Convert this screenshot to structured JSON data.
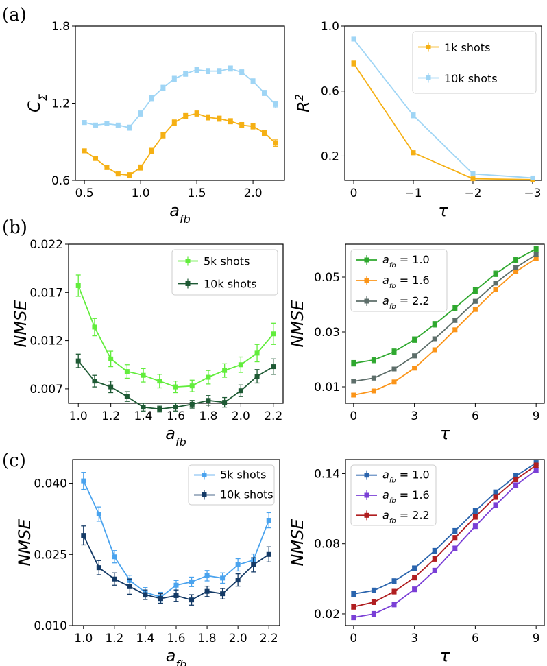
{
  "panel_labels": [
    "(a)",
    "(b)",
    "(c)"
  ],
  "chart_data": [
    {
      "id": "a_left",
      "type": "line",
      "xlabel": "a",
      "xlabel_sub": "fb",
      "ylabel": "C",
      "ylabel_sub": "Σ",
      "xlim": [
        0.42,
        2.28
      ],
      "ylim": [
        0.6,
        1.8
      ],
      "xticks": [
        0.5,
        1.0,
        1.5,
        2.0
      ],
      "xtick_labels": [
        "0.5",
        "1.0",
        "1.5",
        "2.0"
      ],
      "yticks": [
        0.6,
        1.2,
        1.8
      ],
      "ytick_labels": [
        "0.6",
        "1.2",
        "1.8"
      ],
      "legend": null,
      "series": [
        {
          "name": "1k shots",
          "color": "#f5b014",
          "x": [
            0.5,
            0.6,
            0.7,
            0.8,
            0.9,
            1.0,
            1.1,
            1.2,
            1.3,
            1.4,
            1.5,
            1.6,
            1.7,
            1.8,
            1.9,
            2.0,
            2.1,
            2.2
          ],
          "values": [
            0.83,
            0.77,
            0.7,
            0.65,
            0.64,
            0.7,
            0.83,
            0.95,
            1.05,
            1.1,
            1.12,
            1.09,
            1.08,
            1.06,
            1.03,
            1.02,
            0.97,
            0.89
          ],
          "err": [
            0.015,
            0.015,
            0.015,
            0.015,
            0.02,
            0.02,
            0.02,
            0.02,
            0.02,
            0.02,
            0.02,
            0.02,
            0.02,
            0.02,
            0.02,
            0.02,
            0.02,
            0.025
          ]
        },
        {
          "name": "10k shots",
          "color": "#9fd5f5",
          "x": [
            0.5,
            0.6,
            0.7,
            0.8,
            0.9,
            1.0,
            1.1,
            1.2,
            1.3,
            1.4,
            1.5,
            1.6,
            1.7,
            1.8,
            1.9,
            2.0,
            2.1,
            2.2
          ],
          "values": [
            1.05,
            1.03,
            1.04,
            1.03,
            1.01,
            1.12,
            1.24,
            1.32,
            1.39,
            1.43,
            1.46,
            1.45,
            1.45,
            1.47,
            1.44,
            1.37,
            1.28,
            1.19
          ],
          "err": [
            0.015,
            0.015,
            0.015,
            0.015,
            0.02,
            0.02,
            0.02,
            0.02,
            0.02,
            0.02,
            0.02,
            0.02,
            0.02,
            0.02,
            0.02,
            0.02,
            0.02,
            0.025
          ]
        }
      ]
    },
    {
      "id": "a_right",
      "type": "line",
      "xlabel": "τ",
      "xlabel_sub": "",
      "ylabel": "R",
      "ylabel_sup": "2",
      "xlim": [
        0.15,
        -3.15
      ],
      "ylim": [
        0.05,
        1.0
      ],
      "xticks": [
        0,
        -1,
        -2,
        -3
      ],
      "xtick_labels": [
        "0",
        "−1",
        "−2",
        "−3"
      ],
      "yticks": [
        0.2,
        0.6,
        1.0
      ],
      "ytick_labels": [
        "0.2",
        "0.6",
        "1.0"
      ],
      "legend": "top-right",
      "series": [
        {
          "name": "1k shots",
          "color": "#f5b014",
          "x": [
            0,
            -1,
            -2,
            -3
          ],
          "values": [
            0.77,
            0.22,
            0.06,
            0.055
          ],
          "err": [
            0.015,
            0.012,
            0.006,
            0.006
          ]
        },
        {
          "name": "10k shots",
          "color": "#9fd5f5",
          "x": [
            0,
            -1,
            -2,
            -3
          ],
          "values": [
            0.92,
            0.45,
            0.09,
            0.065
          ],
          "err": [
            0.012,
            0.015,
            0.006,
            0.006
          ]
        }
      ]
    },
    {
      "id": "b_left",
      "type": "line",
      "xlabel": "a",
      "xlabel_sub": "fb",
      "ylabel": "NMSE",
      "xlim": [
        0.94,
        2.26
      ],
      "ylim": [
        0.0055,
        0.022
      ],
      "xticks": [
        1.0,
        1.2,
        1.4,
        1.6,
        1.8,
        2.0,
        2.2
      ],
      "xtick_labels": [
        "1.0",
        "1.2",
        "1.4",
        "1.6",
        "1.8",
        "2.0",
        "2.2"
      ],
      "yticks": [
        0.007,
        0.012,
        0.017,
        0.022
      ],
      "ytick_labels": [
        "0.007",
        "0.012",
        "0.017",
        "0.022"
      ],
      "legend": "top-right",
      "series": [
        {
          "name": "5k shots",
          "color": "#62ed3c",
          "x": [
            1.0,
            1.1,
            1.2,
            1.3,
            1.4,
            1.5,
            1.6,
            1.7,
            1.8,
            1.9,
            2.0,
            2.1,
            2.2
          ],
          "values": [
            0.0177,
            0.0134,
            0.0101,
            0.0088,
            0.0084,
            0.0078,
            0.0072,
            0.0073,
            0.0082,
            0.0089,
            0.0095,
            0.0107,
            0.0127
          ],
          "err": [
            0.0011,
            0.0009,
            0.0008,
            0.0007,
            0.0007,
            0.0007,
            0.0006,
            0.0006,
            0.0007,
            0.0007,
            0.0008,
            0.0009,
            0.0011
          ]
        },
        {
          "name": "10k shots",
          "color": "#1e5a34",
          "x": [
            1.0,
            1.1,
            1.2,
            1.3,
            1.4,
            1.5,
            1.6,
            1.7,
            1.8,
            1.9,
            2.0,
            2.1,
            2.2
          ],
          "values": [
            0.0099,
            0.0078,
            0.0072,
            0.0062,
            0.0051,
            0.0049,
            0.0051,
            0.0054,
            0.0058,
            0.0056,
            0.0068,
            0.0083,
            0.0093
          ],
          "err": [
            0.0007,
            0.0006,
            0.0006,
            0.0005,
            0.0004,
            0.0003,
            0.0004,
            0.0004,
            0.0005,
            0.0005,
            0.0006,
            0.0007,
            0.0008
          ]
        }
      ]
    },
    {
      "id": "b_right",
      "type": "line",
      "xlabel": "τ",
      "xlabel_sub": "",
      "ylabel": "NMSE",
      "xlim": [
        -0.4,
        9.4
      ],
      "ylim": [
        0.004,
        0.062
      ],
      "xticks": [
        0,
        3,
        6,
        9
      ],
      "xtick_labels": [
        "0",
        "3",
        "6",
        "9"
      ],
      "yticks": [
        0.01,
        0.03,
        0.05
      ],
      "ytick_labels": [
        "0.01",
        "0.03",
        "0.05"
      ],
      "legend": "top-left",
      "series": [
        {
          "name": "a_fb = 1.0",
          "label_main": "a",
          "label_sub": "fb",
          "label_val": " = 1.0",
          "color": "#2ea82e",
          "x": [
            0,
            1,
            2,
            3,
            4,
            5,
            6,
            7,
            8,
            9
          ],
          "values": [
            0.0186,
            0.0198,
            0.0228,
            0.0272,
            0.0328,
            0.0388,
            0.0451,
            0.0512,
            0.0563,
            0.0603
          ],
          "err": [
            0.001,
            0.001,
            0.001,
            0.001,
            0.001,
            0.001,
            0.001,
            0.001,
            0.001,
            0.001
          ]
        },
        {
          "name": "a_fb = 1.6",
          "label_main": "a",
          "label_sub": "fb",
          "label_val": " = 1.6",
          "color": "#fb9418",
          "x": [
            0,
            1,
            2,
            3,
            4,
            5,
            6,
            7,
            8,
            9
          ],
          "values": [
            0.007,
            0.0085,
            0.0118,
            0.0168,
            0.0235,
            0.0308,
            0.0382,
            0.0455,
            0.052,
            0.0568
          ],
          "err": [
            0.0006,
            0.0006,
            0.0006,
            0.0006,
            0.0006,
            0.0006,
            0.0006,
            0.0006,
            0.0006,
            0.0006
          ]
        },
        {
          "name": "a_fb = 2.2",
          "label_main": "a",
          "label_sub": "fb",
          "label_val": " = 2.2",
          "color": "#5d6e6a",
          "x": [
            0,
            1,
            2,
            3,
            4,
            5,
            6,
            7,
            8,
            9
          ],
          "values": [
            0.012,
            0.0132,
            0.0165,
            0.0213,
            0.0275,
            0.0342,
            0.0412,
            0.0478,
            0.0535,
            0.0582
          ],
          "err": [
            0.0007,
            0.0007,
            0.0007,
            0.0007,
            0.0007,
            0.0007,
            0.0007,
            0.0007,
            0.0007,
            0.0007
          ]
        }
      ]
    },
    {
      "id": "c_left",
      "type": "line",
      "xlabel": "a",
      "xlabel_sub": "fb",
      "ylabel": "NMSE",
      "xlim": [
        0.93,
        2.27
      ],
      "ylim": [
        0.01,
        0.045
      ],
      "xticks": [
        1.0,
        1.2,
        1.4,
        1.6,
        1.8,
        2.0,
        2.2
      ],
      "xtick_labels": [
        "1.0",
        "1.2",
        "1.4",
        "1.6",
        "1.8",
        "2.0",
        "2.2"
      ],
      "yticks": [
        0.01,
        0.025,
        0.04
      ],
      "ytick_labels": [
        "0.010",
        "0.025",
        "0.040"
      ],
      "legend": "top-right",
      "series": [
        {
          "name": "5k shots",
          "color": "#4aa3ee",
          "x": [
            1.0,
            1.1,
            1.2,
            1.3,
            1.4,
            1.5,
            1.6,
            1.7,
            1.8,
            1.9,
            2.0,
            2.1,
            2.2
          ],
          "values": [
            0.0405,
            0.0335,
            0.0245,
            0.0195,
            0.017,
            0.016,
            0.0185,
            0.0192,
            0.0205,
            0.02,
            0.0228,
            0.0238,
            0.0322
          ],
          "err": [
            0.0018,
            0.0015,
            0.0013,
            0.0011,
            0.001,
            0.001,
            0.001,
            0.001,
            0.0011,
            0.0011,
            0.0013,
            0.0013,
            0.0016
          ]
        },
        {
          "name": "10k shots",
          "color": "#143a66",
          "x": [
            1.0,
            1.1,
            1.2,
            1.3,
            1.4,
            1.5,
            1.6,
            1.7,
            1.8,
            1.9,
            2.0,
            2.1,
            2.2
          ],
          "values": [
            0.029,
            0.0222,
            0.0198,
            0.0182,
            0.0165,
            0.0157,
            0.0163,
            0.0154,
            0.0172,
            0.0167,
            0.0196,
            0.0228,
            0.025
          ],
          "err": [
            0.002,
            0.0015,
            0.0013,
            0.0016,
            0.001,
            0.001,
            0.0012,
            0.0011,
            0.0011,
            0.0011,
            0.0013,
            0.0015,
            0.0016
          ]
        }
      ]
    },
    {
      "id": "c_right",
      "type": "line",
      "xlabel": "τ",
      "xlabel_sub": "",
      "ylabel": "NMSE",
      "xlim": [
        -0.4,
        9.4
      ],
      "ylim": [
        0.01,
        0.152
      ],
      "xticks": [
        0,
        3,
        6,
        9
      ],
      "xtick_labels": [
        "0",
        "3",
        "6",
        "9"
      ],
      "yticks": [
        0.02,
        0.08,
        0.14
      ],
      "ytick_labels": [
        "0.02",
        "0.08",
        "0.14"
      ],
      "legend": "top-left",
      "series": [
        {
          "name": "a_fb = 1.0",
          "label_main": "a",
          "label_sub": "fb",
          "label_val": " = 1.0",
          "color": "#2a64ad",
          "x": [
            0,
            1,
            2,
            3,
            4,
            5,
            6,
            7,
            8,
            9
          ],
          "values": [
            0.037,
            0.04,
            0.048,
            0.059,
            0.074,
            0.091,
            0.108,
            0.124,
            0.138,
            0.149
          ],
          "err": [
            0.002,
            0.002,
            0.002,
            0.002,
            0.002,
            0.002,
            0.002,
            0.002,
            0.002,
            0.002
          ]
        },
        {
          "name": "a_fb = 1.6",
          "label_main": "a",
          "label_sub": "fb",
          "label_val": " = 1.6",
          "color": "#7a3fd6",
          "x": [
            0,
            1,
            2,
            3,
            4,
            5,
            6,
            7,
            8,
            9
          ],
          "values": [
            0.017,
            0.02,
            0.028,
            0.041,
            0.057,
            0.076,
            0.095,
            0.113,
            0.13,
            0.143
          ],
          "err": [
            0.002,
            0.002,
            0.002,
            0.002,
            0.002,
            0.002,
            0.002,
            0.002,
            0.002,
            0.002
          ]
        },
        {
          "name": "a_fb = 2.2",
          "label_main": "a",
          "label_sub": "fb",
          "label_val": " = 2.2",
          "color": "#b01e20",
          "x": [
            0,
            1,
            2,
            3,
            4,
            5,
            6,
            7,
            8,
            9
          ],
          "values": [
            0.026,
            0.03,
            0.039,
            0.051,
            0.067,
            0.085,
            0.103,
            0.12,
            0.135,
            0.147
          ],
          "err": [
            0.002,
            0.002,
            0.002,
            0.002,
            0.002,
            0.002,
            0.002,
            0.002,
            0.002,
            0.002
          ]
        }
      ]
    }
  ]
}
